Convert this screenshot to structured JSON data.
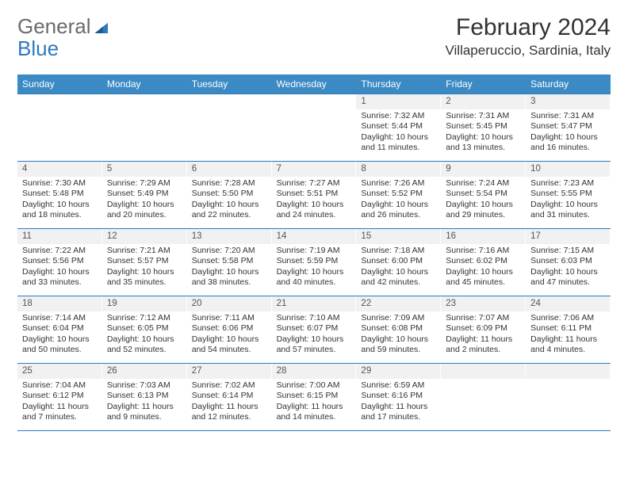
{
  "logo": {
    "general": "General",
    "blue": "Blue"
  },
  "header": {
    "month_title": "February 2024",
    "location": "Villaperuccio, Sardinia, Italy"
  },
  "colors": {
    "header_bg": "#3b8ac4",
    "header_text": "#ffffff",
    "daynum_bg": "#f1f1f1",
    "border": "#2d7abf",
    "text": "#333333",
    "logo_gray": "#6a6a6a",
    "logo_blue": "#2d7abf"
  },
  "day_names": [
    "Sunday",
    "Monday",
    "Tuesday",
    "Wednesday",
    "Thursday",
    "Friday",
    "Saturday"
  ],
  "weeks": [
    [
      {
        "day": "",
        "sunrise": "",
        "sunset": "",
        "daylight": ""
      },
      {
        "day": "",
        "sunrise": "",
        "sunset": "",
        "daylight": ""
      },
      {
        "day": "",
        "sunrise": "",
        "sunset": "",
        "daylight": ""
      },
      {
        "day": "",
        "sunrise": "",
        "sunset": "",
        "daylight": ""
      },
      {
        "day": "1",
        "sunrise": "Sunrise: 7:32 AM",
        "sunset": "Sunset: 5:44 PM",
        "daylight": "Daylight: 10 hours and 11 minutes."
      },
      {
        "day": "2",
        "sunrise": "Sunrise: 7:31 AM",
        "sunset": "Sunset: 5:45 PM",
        "daylight": "Daylight: 10 hours and 13 minutes."
      },
      {
        "day": "3",
        "sunrise": "Sunrise: 7:31 AM",
        "sunset": "Sunset: 5:47 PM",
        "daylight": "Daylight: 10 hours and 16 minutes."
      }
    ],
    [
      {
        "day": "4",
        "sunrise": "Sunrise: 7:30 AM",
        "sunset": "Sunset: 5:48 PM",
        "daylight": "Daylight: 10 hours and 18 minutes."
      },
      {
        "day": "5",
        "sunrise": "Sunrise: 7:29 AM",
        "sunset": "Sunset: 5:49 PM",
        "daylight": "Daylight: 10 hours and 20 minutes."
      },
      {
        "day": "6",
        "sunrise": "Sunrise: 7:28 AM",
        "sunset": "Sunset: 5:50 PM",
        "daylight": "Daylight: 10 hours and 22 minutes."
      },
      {
        "day": "7",
        "sunrise": "Sunrise: 7:27 AM",
        "sunset": "Sunset: 5:51 PM",
        "daylight": "Daylight: 10 hours and 24 minutes."
      },
      {
        "day": "8",
        "sunrise": "Sunrise: 7:26 AM",
        "sunset": "Sunset: 5:52 PM",
        "daylight": "Daylight: 10 hours and 26 minutes."
      },
      {
        "day": "9",
        "sunrise": "Sunrise: 7:24 AM",
        "sunset": "Sunset: 5:54 PM",
        "daylight": "Daylight: 10 hours and 29 minutes."
      },
      {
        "day": "10",
        "sunrise": "Sunrise: 7:23 AM",
        "sunset": "Sunset: 5:55 PM",
        "daylight": "Daylight: 10 hours and 31 minutes."
      }
    ],
    [
      {
        "day": "11",
        "sunrise": "Sunrise: 7:22 AM",
        "sunset": "Sunset: 5:56 PM",
        "daylight": "Daylight: 10 hours and 33 minutes."
      },
      {
        "day": "12",
        "sunrise": "Sunrise: 7:21 AM",
        "sunset": "Sunset: 5:57 PM",
        "daylight": "Daylight: 10 hours and 35 minutes."
      },
      {
        "day": "13",
        "sunrise": "Sunrise: 7:20 AM",
        "sunset": "Sunset: 5:58 PM",
        "daylight": "Daylight: 10 hours and 38 minutes."
      },
      {
        "day": "14",
        "sunrise": "Sunrise: 7:19 AM",
        "sunset": "Sunset: 5:59 PM",
        "daylight": "Daylight: 10 hours and 40 minutes."
      },
      {
        "day": "15",
        "sunrise": "Sunrise: 7:18 AM",
        "sunset": "Sunset: 6:00 PM",
        "daylight": "Daylight: 10 hours and 42 minutes."
      },
      {
        "day": "16",
        "sunrise": "Sunrise: 7:16 AM",
        "sunset": "Sunset: 6:02 PM",
        "daylight": "Daylight: 10 hours and 45 minutes."
      },
      {
        "day": "17",
        "sunrise": "Sunrise: 7:15 AM",
        "sunset": "Sunset: 6:03 PM",
        "daylight": "Daylight: 10 hours and 47 minutes."
      }
    ],
    [
      {
        "day": "18",
        "sunrise": "Sunrise: 7:14 AM",
        "sunset": "Sunset: 6:04 PM",
        "daylight": "Daylight: 10 hours and 50 minutes."
      },
      {
        "day": "19",
        "sunrise": "Sunrise: 7:12 AM",
        "sunset": "Sunset: 6:05 PM",
        "daylight": "Daylight: 10 hours and 52 minutes."
      },
      {
        "day": "20",
        "sunrise": "Sunrise: 7:11 AM",
        "sunset": "Sunset: 6:06 PM",
        "daylight": "Daylight: 10 hours and 54 minutes."
      },
      {
        "day": "21",
        "sunrise": "Sunrise: 7:10 AM",
        "sunset": "Sunset: 6:07 PM",
        "daylight": "Daylight: 10 hours and 57 minutes."
      },
      {
        "day": "22",
        "sunrise": "Sunrise: 7:09 AM",
        "sunset": "Sunset: 6:08 PM",
        "daylight": "Daylight: 10 hours and 59 minutes."
      },
      {
        "day": "23",
        "sunrise": "Sunrise: 7:07 AM",
        "sunset": "Sunset: 6:09 PM",
        "daylight": "Daylight: 11 hours and 2 minutes."
      },
      {
        "day": "24",
        "sunrise": "Sunrise: 7:06 AM",
        "sunset": "Sunset: 6:11 PM",
        "daylight": "Daylight: 11 hours and 4 minutes."
      }
    ],
    [
      {
        "day": "25",
        "sunrise": "Sunrise: 7:04 AM",
        "sunset": "Sunset: 6:12 PM",
        "daylight": "Daylight: 11 hours and 7 minutes."
      },
      {
        "day": "26",
        "sunrise": "Sunrise: 7:03 AM",
        "sunset": "Sunset: 6:13 PM",
        "daylight": "Daylight: 11 hours and 9 minutes."
      },
      {
        "day": "27",
        "sunrise": "Sunrise: 7:02 AM",
        "sunset": "Sunset: 6:14 PM",
        "daylight": "Daylight: 11 hours and 12 minutes."
      },
      {
        "day": "28",
        "sunrise": "Sunrise: 7:00 AM",
        "sunset": "Sunset: 6:15 PM",
        "daylight": "Daylight: 11 hours and 14 minutes."
      },
      {
        "day": "29",
        "sunrise": "Sunrise: 6:59 AM",
        "sunset": "Sunset: 6:16 PM",
        "daylight": "Daylight: 11 hours and 17 minutes."
      },
      {
        "day": "",
        "sunrise": "",
        "sunset": "",
        "daylight": ""
      },
      {
        "day": "",
        "sunrise": "",
        "sunset": "",
        "daylight": ""
      }
    ]
  ]
}
